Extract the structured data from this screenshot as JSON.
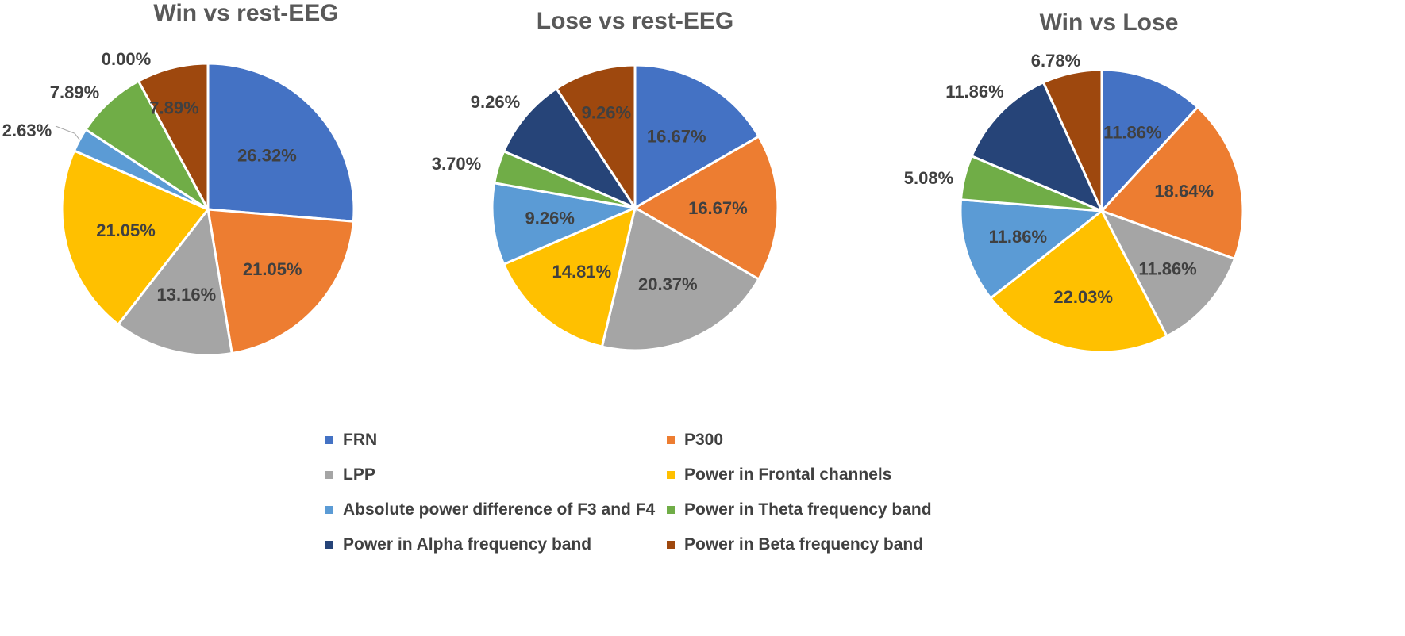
{
  "colors": {
    "FRN": "#4472C4",
    "P300": "#ED7D31",
    "LPP": "#A5A5A5",
    "frontal": "#FFC000",
    "absdiff": "#5B9BD5",
    "theta": "#70AD47",
    "alpha": "#264478",
    "beta": "#9E480E"
  },
  "legend": {
    "items": [
      {
        "key": "FRN",
        "label": "FRN"
      },
      {
        "key": "P300",
        "label": "P300"
      },
      {
        "key": "LPP",
        "label": "LPP"
      },
      {
        "key": "frontal",
        "label": "Power in Frontal channels"
      },
      {
        "key": "absdiff",
        "label": "Absolute power difference of F3 and F4"
      },
      {
        "key": "theta",
        "label": "Power in Theta frequency band"
      },
      {
        "key": "alpha",
        "label": "Power in Alpha frequency band"
      },
      {
        "key": "beta",
        "label": "Power in Beta frequency band"
      }
    ]
  },
  "chart_data": [
    {
      "type": "pie",
      "title": "Win vs rest-EEG",
      "categories": [
        "FRN",
        "P300",
        "LPP",
        "Power in Frontal channels",
        "Absolute power difference of F3 and F4",
        "Power in Theta frequency band",
        "Power in Alpha frequency band",
        "Power in Beta frequency band"
      ],
      "values": [
        26.32,
        21.05,
        13.16,
        21.05,
        2.63,
        7.89,
        0.0,
        7.89
      ],
      "labels": [
        "26.32%",
        "21.05%",
        "13.16%",
        "21.05%",
        "2.63%",
        "7.89%",
        "0.00%",
        "7.89%"
      ]
    },
    {
      "type": "pie",
      "title": "Lose vs rest-EEG",
      "categories": [
        "FRN",
        "P300",
        "LPP",
        "Power in Frontal channels",
        "Absolute power difference of F3 and F4",
        "Power in Theta frequency band",
        "Power in Alpha frequency band",
        "Power in Beta frequency band"
      ],
      "values": [
        16.67,
        16.67,
        20.37,
        14.81,
        9.26,
        3.7,
        9.26,
        9.26
      ],
      "labels": [
        "16.67%",
        "16.67%",
        "20.37%",
        "14.81%",
        "9.26%",
        "3.70%",
        "9.26%",
        "9.26%"
      ]
    },
    {
      "type": "pie",
      "title": "Win vs Lose",
      "categories": [
        "FRN",
        "P300",
        "LPP",
        "Power in Frontal channels",
        "Absolute power difference of F3 and F4",
        "Power in Theta frequency band",
        "Power in Alpha frequency band",
        "Power in Beta frequency band"
      ],
      "values": [
        11.86,
        18.64,
        11.86,
        22.03,
        11.86,
        5.08,
        11.86,
        6.78
      ],
      "labels": [
        "11.86%",
        "18.64%",
        "11.86%",
        "22.03%",
        "11.86%",
        "5.08%",
        "11.86%",
        "6.78%"
      ]
    }
  ]
}
